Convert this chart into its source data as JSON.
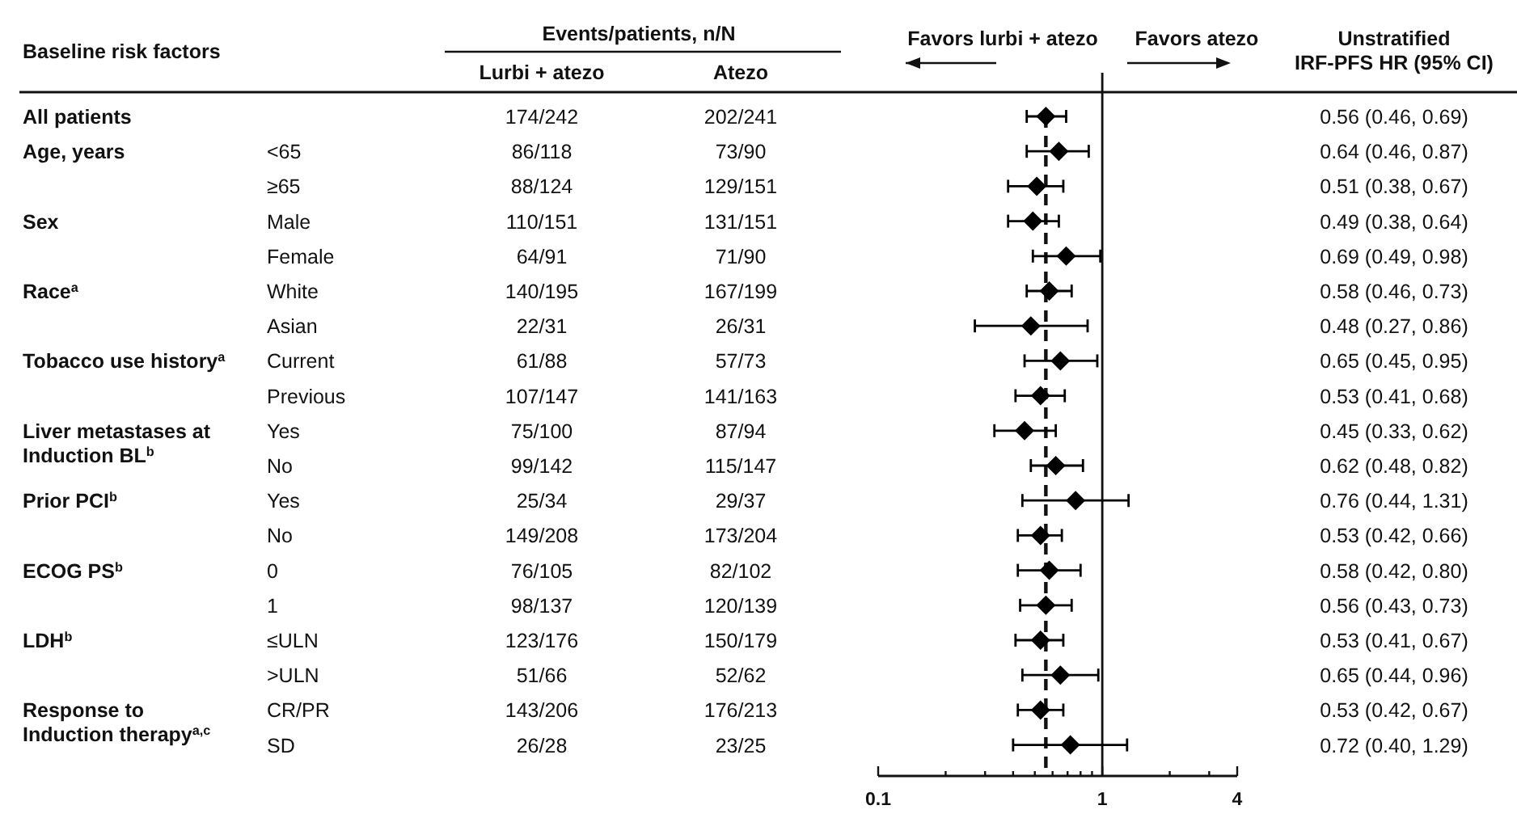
{
  "chart_data": {
    "type": "scatter",
    "orientation": "horizontal",
    "marker": "diamond",
    "color": "#000000",
    "log": "x",
    "grid": false,
    "y_categories": [
      null,
      "<65",
      "≥65",
      "Male",
      "Female",
      "White",
      "Asian",
      "Current",
      "Previous",
      "Yes",
      "No",
      "Yes",
      "No",
      "0",
      "1",
      "≤ULN",
      ">ULN",
      "CR/PR",
      "SD"
    ],
    "values": [
      0.56,
      0.64,
      0.51,
      0.49,
      0.69,
      0.58,
      0.48,
      0.65,
      0.53,
      0.45,
      0.62,
      0.76,
      0.53,
      0.58,
      0.56,
      0.53,
      0.65,
      0.53,
      0.72
    ],
    "errors": [
      [
        0.46,
        0.69
      ],
      [
        0.46,
        0.87
      ],
      [
        0.38,
        0.67
      ],
      [
        0.38,
        0.64
      ],
      [
        0.49,
        0.98
      ],
      [
        0.46,
        0.73
      ],
      [
        0.27,
        0.86
      ],
      [
        0.45,
        0.95
      ],
      [
        0.41,
        0.68
      ],
      [
        0.33,
        0.62
      ],
      [
        0.48,
        0.82
      ],
      [
        0.44,
        1.31
      ],
      [
        0.42,
        0.66
      ],
      [
        0.42,
        0.8
      ],
      [
        0.43,
        0.73
      ],
      [
        0.41,
        0.67
      ],
      [
        0.44,
        0.96
      ],
      [
        0.42,
        0.67
      ],
      [
        0.4,
        1.29
      ]
    ],
    "value_labels": [
      "0.56 (0.46, 0.69)",
      "0.64 (0.46, 0.87)",
      "0.51 (0.38, 0.67)",
      "0.49 (0.38, 0.64)",
      "0.69 (0.49, 0.98)",
      "0.58 (0.46, 0.73)",
      "0.48 (0.27, 0.86)",
      "0.65 (0.45, 0.95)",
      "0.53 (0.41, 0.68)",
      "0.45 (0.33, 0.62)",
      "0.62 (0.48, 0.82)",
      "0.76 (0.44, 1.31)",
      "0.53 (0.42, 0.66)",
      "0.58 (0.42, 0.80)",
      "0.56 (0.43, 0.73)",
      "0.53 (0.41, 0.67)",
      "0.65 (0.44, 0.96)",
      "0.53 (0.42, 0.67)",
      "0.72 (0.40, 1.29)"
    ],
    "xlim": [
      0.1,
      4
    ],
    "xticks": [
      0.1,
      {
        "value": 0.2,
        "label": null
      },
      {
        "value": 0.3,
        "label": null
      },
      {
        "value": 0.4,
        "label": null
      },
      {
        "value": 0.5,
        "label": null
      },
      {
        "value": 0.6,
        "label": null
      },
      {
        "value": 0.7,
        "label": null
      },
      {
        "value": 0.8,
        "label": null
      },
      {
        "value": 0.9,
        "label": null
      },
      1,
      {
        "value": 2,
        "label": null
      },
      {
        "value": 3,
        "label": null
      },
      4
    ],
    "ref_lines": [
      {
        "axis": "x",
        "value": 1,
        "line_style": "solid"
      },
      {
        "axis": "x",
        "value": 0.56,
        "line_style": "dashed"
      }
    ],
    "annotations": [
      "Baseline risk factors",
      "Events/patients, n/N",
      "Lurbi + atezo",
      "Atezo",
      "Favors lurbi + atezo",
      "Favors atezo",
      "Unstratified\nIRF-PFS HR (95% CI)",
      "All patients",
      "Age, years",
      "Sex",
      "Race$^{a}$",
      "Tobacco use history$^{a}$",
      "Liver metastases at\nInduction BL$^{b}$",
      "Prior PCI$^{b}$",
      "ECOG PS$^{b}$",
      "LDH$^{b}$",
      "Response to\nInduction therapy$^{a,c}$",
      "174/242",
      "202/241",
      "86/118",
      "73/90",
      "88/124",
      "129/151",
      "110/151",
      "131/151",
      "64/91",
      "71/90",
      "140/195",
      "167/199",
      "22/31",
      "26/31",
      "61/88",
      "57/73",
      "107/147",
      "141/163",
      "75/100",
      "87/94",
      "99/142",
      "115/147",
      "25/34",
      "29/37",
      "149/208",
      "173/204",
      "76/105",
      "82/102",
      "98/137",
      "120/139",
      "123/176",
      "150/179",
      "51/66",
      "52/62",
      "143/206",
      "176/213",
      "26/28",
      "23/25"
    ]
  }
}
